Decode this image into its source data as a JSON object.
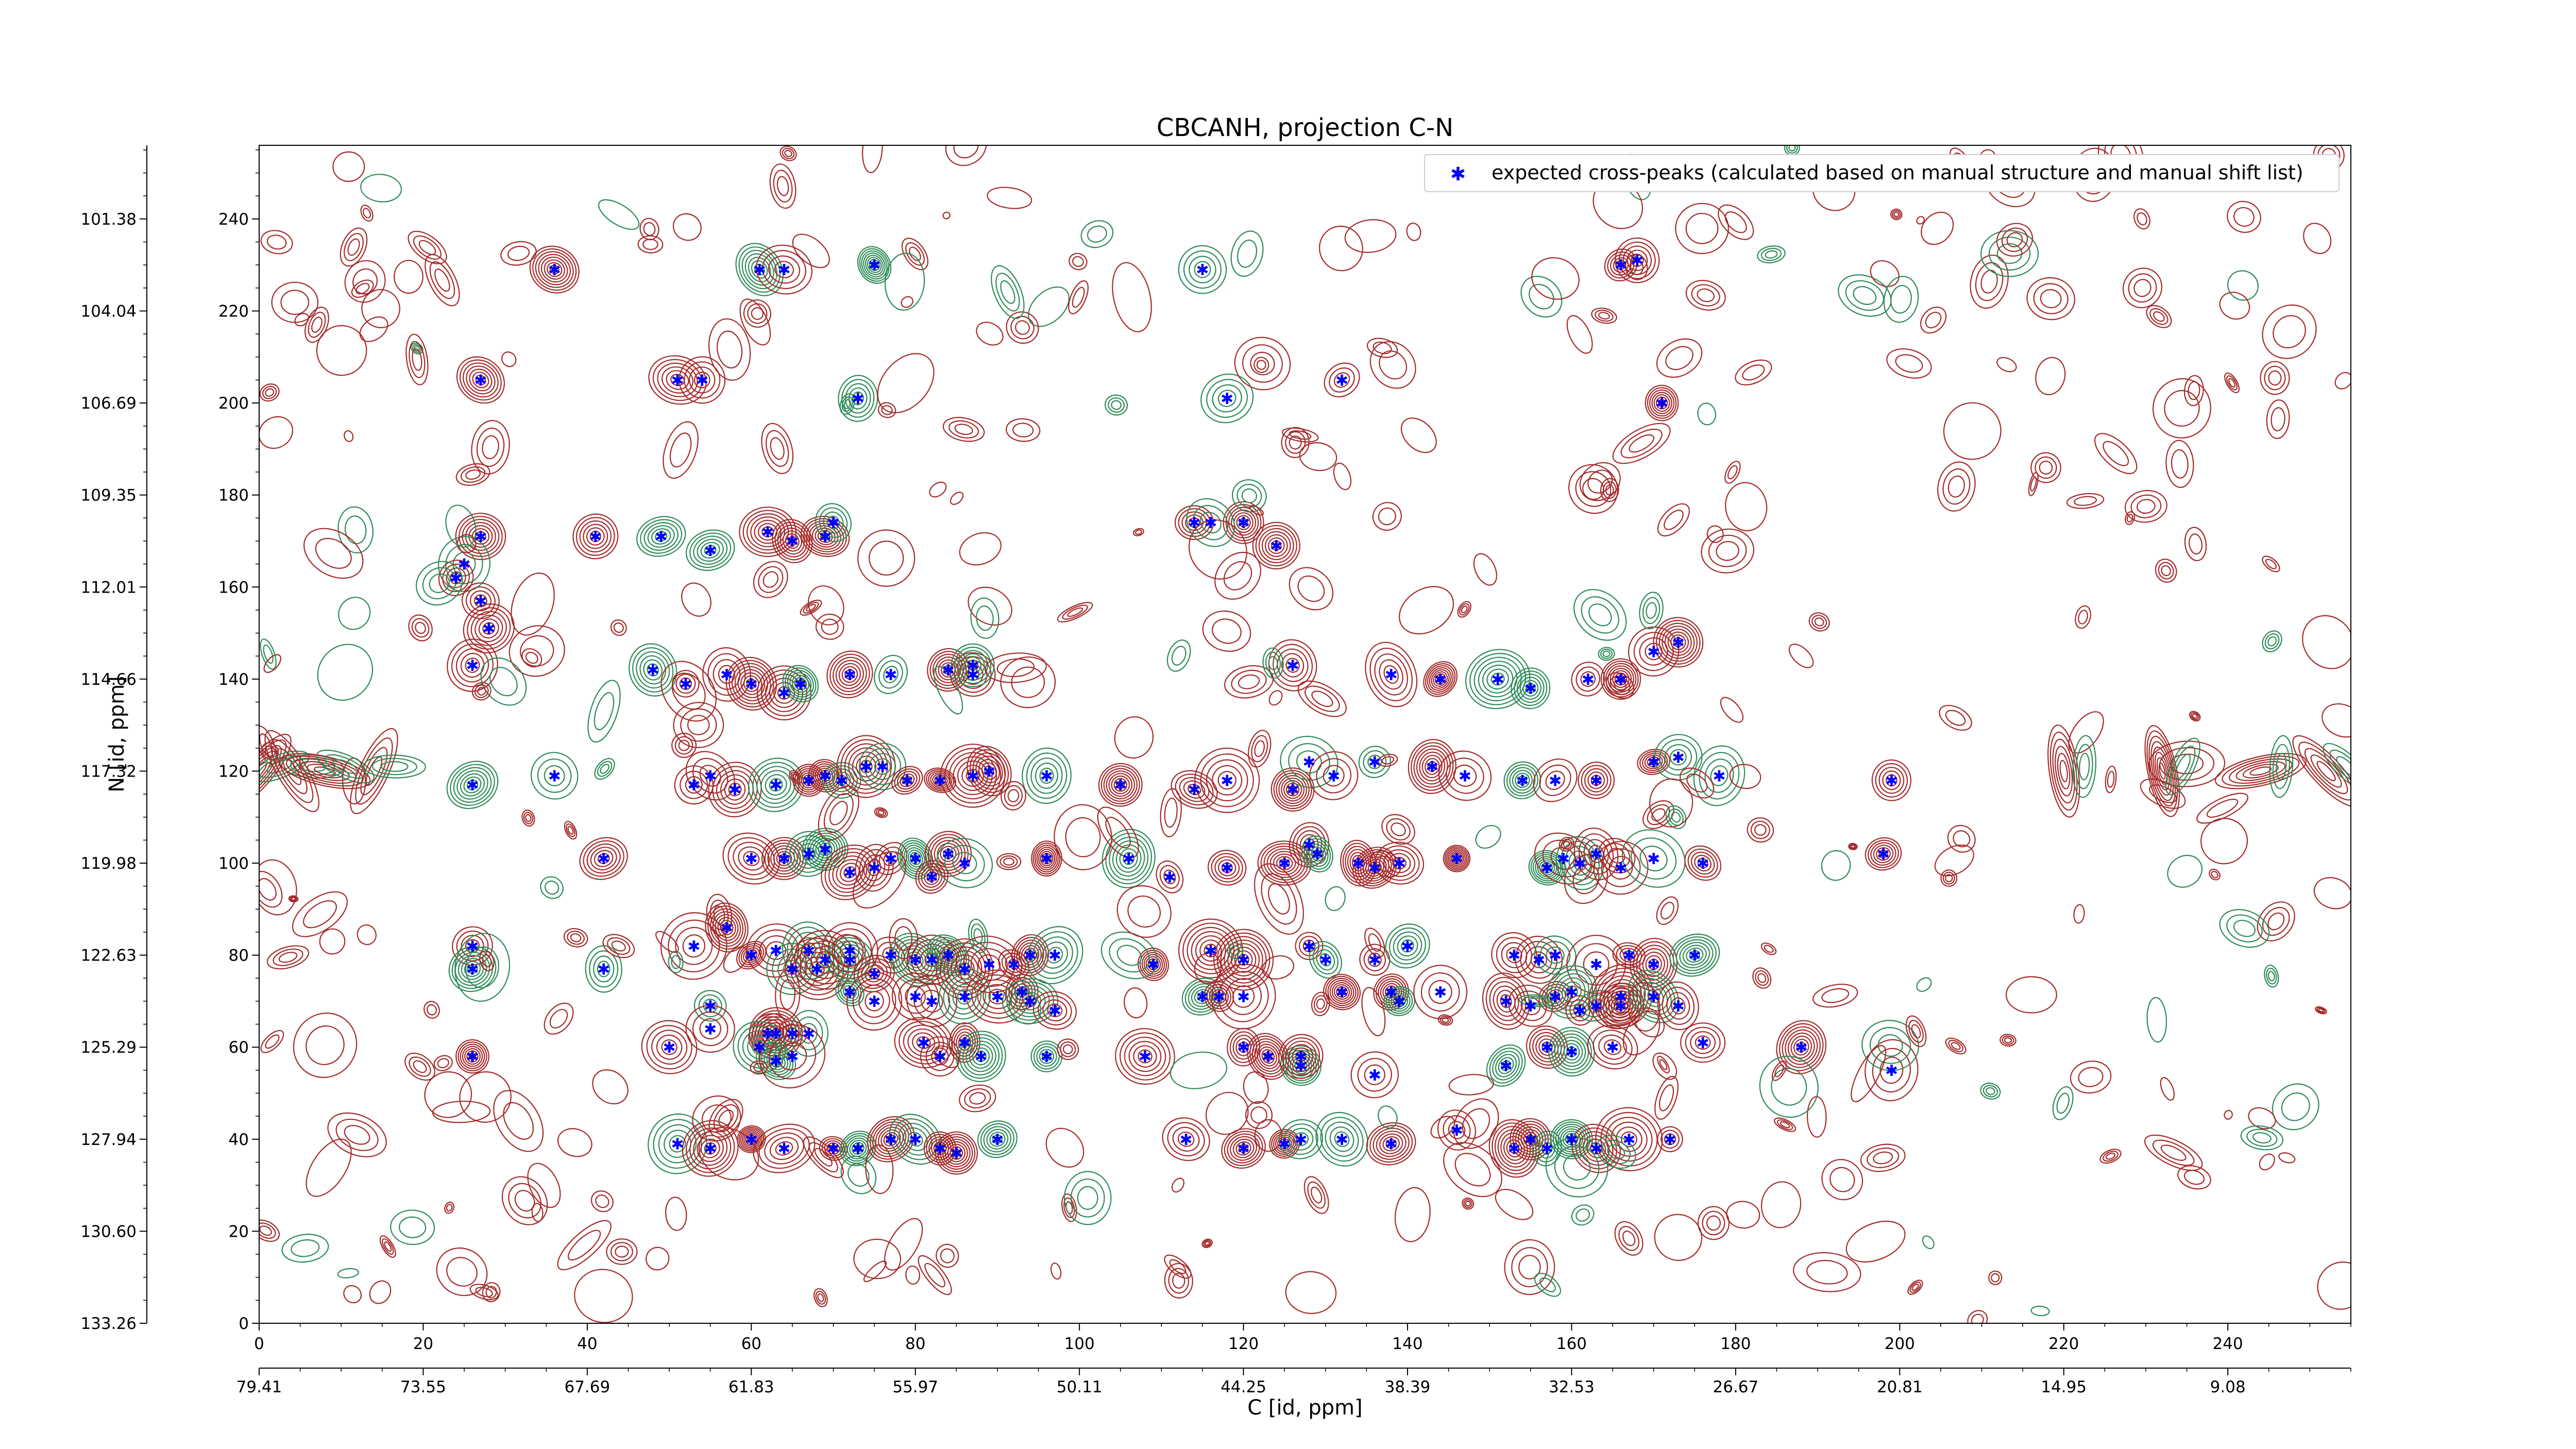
{
  "chart_data": {
    "type": "scatter",
    "title": "CBCANH, projection C-N",
    "xlabel": "C [id, ppm]",
    "ylabel": "N [id, ppm]",
    "xlim": [
      0,
      255
    ],
    "ylim": [
      0,
      256
    ],
    "x_ticks_index": [
      "0",
      "20",
      "40",
      "60",
      "80",
      "100",
      "120",
      "140",
      "160",
      "180",
      "200",
      "220",
      "240"
    ],
    "x_ticks_ppm": [
      "79.41",
      "73.55",
      "67.69",
      "61.83",
      "55.97",
      "50.11",
      "44.25",
      "38.39",
      "32.53",
      "26.67",
      "20.81",
      "14.95",
      "9.08"
    ],
    "y_ticks_index": [
      "0",
      "20",
      "40",
      "60",
      "80",
      "100",
      "120",
      "140",
      "160",
      "180",
      "200",
      "220",
      "240"
    ],
    "y_ticks_ppm": [
      "133.26",
      "130.60",
      "127.94",
      "125.29",
      "122.63",
      "119.98",
      "117.32",
      "114.66",
      "112.01",
      "109.35",
      "106.69",
      "104.04",
      "101.38"
    ],
    "grid": false,
    "legend_position": "top-right",
    "colors": {
      "peaks": "#0000ff",
      "positive_contour": "#a52a2a",
      "negative_contour": "#2e8b57"
    },
    "series": [
      {
        "name": "expected cross-peaks (calculated based on manual structure and manual shift list)",
        "points": [
          [
            36,
            229
          ],
          [
            61,
            229
          ],
          [
            64,
            229
          ],
          [
            75,
            230
          ],
          [
            166,
            230
          ],
          [
            168,
            231
          ],
          [
            115,
            229
          ],
          [
            27,
            205
          ],
          [
            54,
            205
          ],
          [
            51,
            205
          ],
          [
            118,
            201
          ],
          [
            73,
            201
          ],
          [
            132,
            205
          ],
          [
            171,
            200
          ],
          [
            27,
            171
          ],
          [
            41,
            171
          ],
          [
            49,
            171
          ],
          [
            55,
            168
          ],
          [
            62,
            172
          ],
          [
            65,
            170
          ],
          [
            69,
            171
          ],
          [
            70,
            174
          ],
          [
            114,
            174
          ],
          [
            120,
            174
          ],
          [
            116,
            174
          ],
          [
            124,
            169
          ],
          [
            25,
            165
          ],
          [
            24,
            162
          ],
          [
            27,
            157
          ],
          [
            28,
            151
          ],
          [
            26,
            143
          ],
          [
            48,
            142
          ],
          [
            52,
            139
          ],
          [
            57,
            141
          ],
          [
            60,
            139
          ],
          [
            64,
            137
          ],
          [
            66,
            139
          ],
          [
            72,
            141
          ],
          [
            77,
            141
          ],
          [
            84,
            142
          ],
          [
            87,
            141
          ],
          [
            87,
            143
          ],
          [
            126,
            143
          ],
          [
            138,
            141
          ],
          [
            144,
            140
          ],
          [
            151,
            140
          ],
          [
            155,
            138
          ],
          [
            162,
            140
          ],
          [
            166,
            140
          ],
          [
            170,
            146
          ],
          [
            173,
            148
          ],
          [
            26,
            117
          ],
          [
            36,
            119
          ],
          [
            53,
            117
          ],
          [
            55,
            119
          ],
          [
            58,
            116
          ],
          [
            63,
            117
          ],
          [
            67,
            118
          ],
          [
            69,
            119
          ],
          [
            71,
            118
          ],
          [
            74,
            121
          ],
          [
            76,
            121
          ],
          [
            79,
            118
          ],
          [
            83,
            118
          ],
          [
            87,
            119
          ],
          [
            89,
            120
          ],
          [
            96,
            119
          ],
          [
            105,
            117
          ],
          [
            114,
            116
          ],
          [
            118,
            118
          ],
          [
            126,
            116
          ],
          [
            128,
            122
          ],
          [
            131,
            119
          ],
          [
            136,
            122
          ],
          [
            143,
            121
          ],
          [
            147,
            119
          ],
          [
            154,
            118
          ],
          [
            158,
            118
          ],
          [
            163,
            118
          ],
          [
            170,
            122
          ],
          [
            173,
            123
          ],
          [
            178,
            119
          ],
          [
            199,
            118
          ],
          [
            42,
            101
          ],
          [
            60,
            101
          ],
          [
            64,
            101
          ],
          [
            67,
            102
          ],
          [
            69,
            103
          ],
          [
            72,
            98
          ],
          [
            75,
            99
          ],
          [
            77,
            101
          ],
          [
            80,
            101
          ],
          [
            82,
            97
          ],
          [
            84,
            102
          ],
          [
            86,
            100
          ],
          [
            96,
            101
          ],
          [
            106,
            101
          ],
          [
            111,
            97
          ],
          [
            118,
            99
          ],
          [
            125,
            100
          ],
          [
            128,
            104
          ],
          [
            129,
            102
          ],
          [
            134,
            100
          ],
          [
            136,
            99
          ],
          [
            139,
            100
          ],
          [
            146,
            101
          ],
          [
            157,
            99
          ],
          [
            159,
            101
          ],
          [
            161,
            100
          ],
          [
            163,
            102
          ],
          [
            166,
            99
          ],
          [
            170,
            101
          ],
          [
            176,
            100
          ],
          [
            198,
            102
          ],
          [
            26,
            82
          ],
          [
            26,
            77
          ],
          [
            42,
            77
          ],
          [
            53,
            82
          ],
          [
            57,
            86
          ],
          [
            60,
            80
          ],
          [
            63,
            81
          ],
          [
            65,
            77
          ],
          [
            67,
            81
          ],
          [
            68,
            77
          ],
          [
            69,
            79
          ],
          [
            72,
            81
          ],
          [
            72,
            79
          ],
          [
            75,
            76
          ],
          [
            77,
            80
          ],
          [
            80,
            79
          ],
          [
            82,
            79
          ],
          [
            84,
            80
          ],
          [
            86,
            77
          ],
          [
            89,
            78
          ],
          [
            92,
            78
          ],
          [
            94,
            80
          ],
          [
            97,
            80
          ],
          [
            109,
            78
          ],
          [
            116,
            81
          ],
          [
            120,
            79
          ],
          [
            128,
            82
          ],
          [
            130,
            79
          ],
          [
            136,
            79
          ],
          [
            140,
            82
          ],
          [
            153,
            80
          ],
          [
            156,
            79
          ],
          [
            158,
            80
          ],
          [
            163,
            78
          ],
          [
            167,
            80
          ],
          [
            170,
            78
          ],
          [
            175,
            80
          ],
          [
            55,
            69
          ],
          [
            55,
            64
          ],
          [
            62,
            63
          ],
          [
            63,
            63
          ],
          [
            65,
            63
          ],
          [
            67,
            63
          ],
          [
            72,
            72
          ],
          [
            75,
            70
          ],
          [
            80,
            71
          ],
          [
            82,
            70
          ],
          [
            86,
            71
          ],
          [
            90,
            71
          ],
          [
            93,
            72
          ],
          [
            94,
            70
          ],
          [
            97,
            68
          ],
          [
            115,
            71
          ],
          [
            117,
            71
          ],
          [
            120,
            71
          ],
          [
            132,
            72
          ],
          [
            138,
            72
          ],
          [
            139,
            70
          ],
          [
            144,
            72
          ],
          [
            152,
            70
          ],
          [
            155,
            69
          ],
          [
            158,
            71
          ],
          [
            160,
            72
          ],
          [
            161,
            68
          ],
          [
            163,
            69
          ],
          [
            166,
            69
          ],
          [
            166,
            71
          ],
          [
            170,
            71
          ],
          [
            173,
            69
          ],
          [
            26,
            58
          ],
          [
            50,
            60
          ],
          [
            61,
            60
          ],
          [
            63,
            57
          ],
          [
            65,
            58
          ],
          [
            81,
            61
          ],
          [
            83,
            58
          ],
          [
            86,
            61
          ],
          [
            88,
            58
          ],
          [
            96,
            58
          ],
          [
            108,
            58
          ],
          [
            120,
            60
          ],
          [
            123,
            58
          ],
          [
            127,
            56
          ],
          [
            127,
            58
          ],
          [
            136,
            54
          ],
          [
            152,
            56
          ],
          [
            157,
            60
          ],
          [
            160,
            59
          ],
          [
            165,
            60
          ],
          [
            176,
            61
          ],
          [
            188,
            60
          ],
          [
            199,
            55
          ],
          [
            51,
            39
          ],
          [
            55,
            38
          ],
          [
            60,
            40
          ],
          [
            64,
            38
          ],
          [
            70,
            38
          ],
          [
            73,
            38
          ],
          [
            77,
            40
          ],
          [
            80,
            40
          ],
          [
            83,
            38
          ],
          [
            85,
            37
          ],
          [
            90,
            40
          ],
          [
            113,
            40
          ],
          [
            120,
            38
          ],
          [
            125,
            39
          ],
          [
            127,
            40
          ],
          [
            132,
            40
          ],
          [
            138,
            39
          ],
          [
            146,
            42
          ],
          [
            153,
            38
          ],
          [
            155,
            40
          ],
          [
            157,
            38
          ],
          [
            160,
            40
          ],
          [
            163,
            38
          ],
          [
            167,
            40
          ],
          [
            172,
            40
          ]
        ]
      }
    ]
  }
}
